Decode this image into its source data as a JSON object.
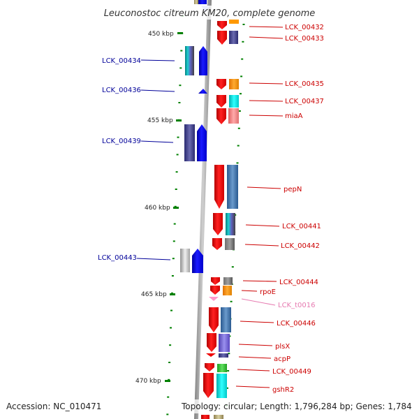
{
  "title": "Leuconostoc citreum KM20, complete genome",
  "footer": {
    "accession": "Accession: NC_010471",
    "topology": "Topology: circular; Length: 1,796,284 bp; Genes: 1,784"
  },
  "scale_ticks": [
    "450 kbp",
    "455 kbp",
    "460 kbp",
    "465 kbp",
    "470 kbp"
  ],
  "genes_reverse": [
    {
      "name": "LCK_00434"
    },
    {
      "name": "LCK_00436"
    },
    {
      "name": "LCK_00439"
    },
    {
      "name": "LCK_00443"
    }
  ],
  "genes_forward": [
    {
      "name": "LCK_00432"
    },
    {
      "name": "LCK_00433"
    },
    {
      "name": "LCK_00435"
    },
    {
      "name": "LCK_00437"
    },
    {
      "name": "miaA"
    },
    {
      "name": "pepN"
    },
    {
      "name": "LCK_00441"
    },
    {
      "name": "LCK_00442"
    },
    {
      "name": "LCK_00444"
    },
    {
      "name": "rpoE"
    },
    {
      "name": "LCK_t0016"
    },
    {
      "name": "LCK_00446"
    },
    {
      "name": "plsX"
    },
    {
      "name": "acpP"
    },
    {
      "name": "LCK_00449"
    },
    {
      "name": "gshR2"
    }
  ],
  "colors": {
    "forward_strand": "#ff0000",
    "reverse_strand": "#0000ff",
    "forward_label": "#cc0000",
    "reverse_label": "#000099",
    "trna": "#ff99cc",
    "trna_label": "#e67ab0",
    "backbone": "#a8a8a8",
    "tick": "#008000"
  }
}
